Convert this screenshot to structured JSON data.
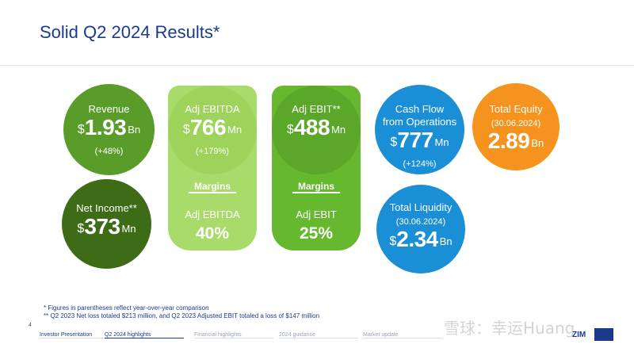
{
  "title": "Solid Q2 2024 Results*",
  "metrics": {
    "revenue": {
      "label": "Revenue",
      "currency": "$",
      "value": "1.93",
      "unit": "Bn",
      "change": "(+48%)"
    },
    "net_income": {
      "label": "Net Income**",
      "currency": "$",
      "value": "373",
      "unit": "Mn"
    },
    "adj_ebitda": {
      "label": "Adj EBITDA",
      "currency": "$",
      "value": "766",
      "unit": "Mn",
      "change": "(+179%)",
      "margins_title": "Margins",
      "margin_label": "Adj EBITDA",
      "margin_value": "40%"
    },
    "adj_ebit": {
      "label": "Adj EBIT**",
      "currency": "$",
      "value": "488",
      "unit": "Mn",
      "margins_title": "Margins",
      "margin_label": "Adj EBIT",
      "margin_value": "25%"
    },
    "cash_flow": {
      "label_line1": "Cash Flow",
      "label_line2": "from Operations",
      "currency": "$",
      "value": "777",
      "unit": "Mn",
      "change": "(+124%)"
    },
    "total_liquidity": {
      "label": "Total Liquidity",
      "date": "(30.06.2024)",
      "currency": "$",
      "value": "2.34",
      "unit": "Bn"
    },
    "total_equity": {
      "label": "Total Equity",
      "date": "(30.06.2024)",
      "value": "2.89",
      "unit": "Bn"
    }
  },
  "footnotes": {
    "line1": "* Figures in parentheses reflect year-over-year comparison",
    "line2": "** Q2 2023 Net loss totaled $213 million, and Q2 2023 Adjusted EBIT totaled a loss of $147 million"
  },
  "page_number": "4",
  "nav": [
    "Investor Presentation",
    "Q2 2024 highlights",
    "Financial highlights",
    "2024 guidance",
    "Market update"
  ],
  "nav_active_index": 1,
  "logo_text": "ZIM",
  "watermark": "雪球：幸运Huang",
  "colors": {
    "title": "#1b3a8c",
    "green_light": "#9dd35a",
    "green_mid": "#5aa72a",
    "green_dark": "#3d6b16",
    "blue": "#1a8fd6",
    "orange": "#f5931e"
  }
}
